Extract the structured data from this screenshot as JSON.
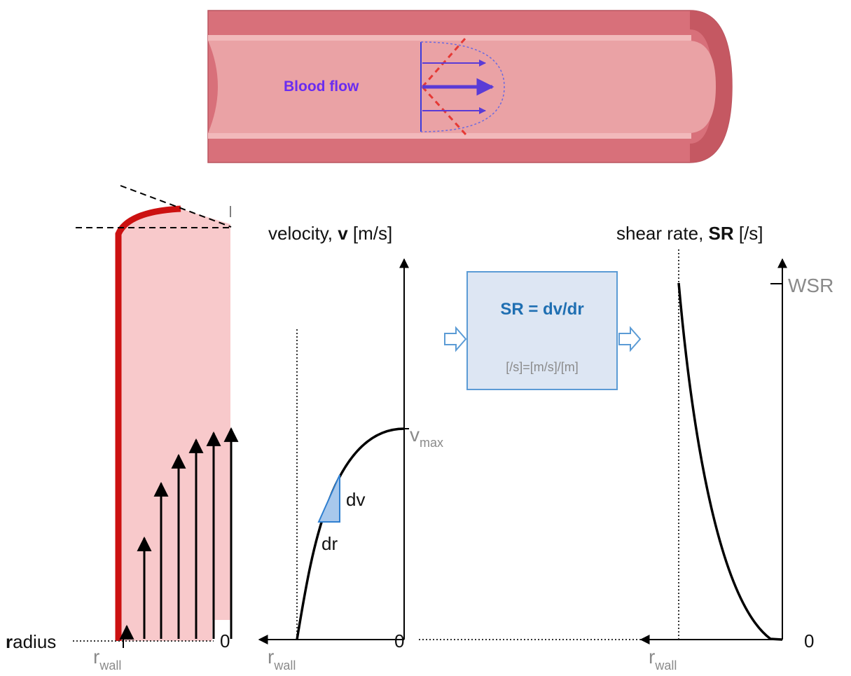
{
  "vessel": {
    "flow_label": "Blood flow",
    "colors": {
      "wall": "#d8707a",
      "lumen": "#eaa2a5",
      "arrows": "#5a3bd6",
      "dashes": "#e53935"
    }
  },
  "profile_panel": {
    "axis_label": "radius",
    "rwall_main": "r",
    "rwall_sub": "wall",
    "zero_label": "0",
    "colors": {
      "fill": "#f8c9cb",
      "wall_line": "#cc1111"
    }
  },
  "velocity_panel": {
    "title_pre": "velocity, ",
    "title_bold": "v",
    "title_post": " [m/s]",
    "vmax_main": "v",
    "vmax_sub": "max",
    "dv_label": "dv",
    "dr_label": "dr",
    "rwall_main": "r",
    "rwall_sub": "wall",
    "zero_label": "0"
  },
  "equation_box": {
    "equation": "SR = dv/dr",
    "units": "[/s]=[m/s]/[m]",
    "colors": {
      "fill": "#dde6f3",
      "border": "#5b9bd5",
      "text": "#1f6fb2"
    }
  },
  "shear_panel": {
    "title_pre": "shear rate, ",
    "title_bold": "SR",
    "title_post": " [/s]",
    "wsr_label": "WSR",
    "rwall_main": "r",
    "rwall_sub": "wall",
    "zero_label": "0"
  }
}
